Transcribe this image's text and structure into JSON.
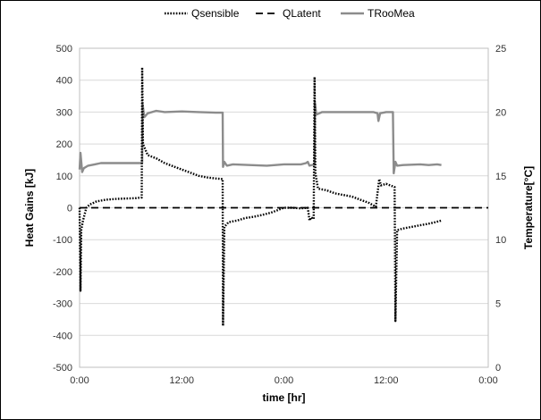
{
  "chart_data": {
    "type": "line",
    "xlabel": "time [hr]",
    "ylabel": "Heat Gains [kJ]",
    "y2label": "Temperature[°C]",
    "x_unit": "hours",
    "xlim": [
      0,
      48
    ],
    "ylim": [
      -500,
      500
    ],
    "y2lim": [
      0,
      25
    ],
    "x_ticks": [
      0,
      12,
      24,
      36,
      48
    ],
    "x_tick_labels": [
      "0:00",
      "12:00",
      "0:00",
      "12:00",
      "0:00"
    ],
    "y_ticks": [
      -500,
      -400,
      -300,
      -200,
      -100,
      0,
      100,
      200,
      300,
      400,
      500
    ],
    "y_tick_labels": [
      "-500",
      "-400",
      "-300",
      "-200",
      "-100",
      "0",
      "100",
      "200",
      "300",
      "400",
      "500"
    ],
    "y2_ticks": [
      0,
      5,
      10,
      15,
      20,
      25
    ],
    "y2_tick_labels": [
      "0",
      "5",
      "10",
      "15",
      "20",
      "25"
    ],
    "grid": "horizontal",
    "legend_position": "top",
    "series": [
      {
        "name": "Qsensible",
        "axis": "left",
        "style": "dotted",
        "color": "#000000",
        "points": [
          [
            0,
            0
          ],
          [
            0.1,
            -260
          ],
          [
            0.2,
            -70
          ],
          [
            0.4,
            -40
          ],
          [
            0.6,
            -20
          ],
          [
            0.8,
            0
          ],
          [
            1.2,
            10
          ],
          [
            2.0,
            20
          ],
          [
            3.0,
            25
          ],
          [
            4.5,
            28
          ],
          [
            6.5,
            30
          ],
          [
            7.3,
            32
          ],
          [
            7.35,
            440
          ],
          [
            7.45,
            200
          ],
          [
            7.6,
            190
          ],
          [
            8.0,
            165
          ],
          [
            9.0,
            155
          ],
          [
            10.0,
            140
          ],
          [
            11.0,
            130
          ],
          [
            12.0,
            120
          ],
          [
            13.0,
            110
          ],
          [
            14.0,
            100
          ],
          [
            15.0,
            95
          ],
          [
            16.0,
            92
          ],
          [
            16.8,
            90
          ],
          [
            16.85,
            -370
          ],
          [
            17.0,
            -60
          ],
          [
            17.5,
            -45
          ],
          [
            18.5,
            -40
          ],
          [
            19.5,
            -32
          ],
          [
            20.5,
            -28
          ],
          [
            21.5,
            -22
          ],
          [
            22.5,
            -15
          ],
          [
            23.0,
            -10
          ],
          [
            24.0,
            0
          ],
          [
            25.0,
            0
          ],
          [
            26.0,
            -2
          ],
          [
            26.8,
            0
          ],
          [
            27.0,
            -40
          ],
          [
            27.2,
            -30
          ],
          [
            27.5,
            -35
          ],
          [
            27.6,
            410
          ],
          [
            27.7,
            110
          ],
          [
            28.0,
            60
          ],
          [
            29.0,
            55
          ],
          [
            30.0,
            45
          ],
          [
            31.0,
            40
          ],
          [
            32.0,
            35
          ],
          [
            33.0,
            25
          ],
          [
            34.0,
            15
          ],
          [
            34.8,
            3
          ],
          [
            35.2,
            90
          ],
          [
            35.4,
            70
          ],
          [
            36.0,
            75
          ],
          [
            36.5,
            70
          ],
          [
            37.0,
            65
          ],
          [
            37.1,
            -355
          ],
          [
            37.3,
            -70
          ],
          [
            38.0,
            -65
          ],
          [
            39.0,
            -60
          ],
          [
            40.0,
            -55
          ],
          [
            41.0,
            -50
          ],
          [
            41.8,
            -45
          ],
          [
            42.5,
            -40
          ]
        ]
      },
      {
        "name": "QLatent",
        "axis": "left",
        "style": "dashed",
        "color": "#000000",
        "points": [
          [
            0,
            0
          ],
          [
            48,
            0
          ]
        ]
      },
      {
        "name": "TRooMea",
        "axis": "right",
        "style": "solid",
        "color": "#8c8c8c",
        "points": [
          [
            0,
            15.5
          ],
          [
            0.1,
            16.8
          ],
          [
            0.3,
            15.3
          ],
          [
            0.5,
            15.6
          ],
          [
            1.0,
            15.8
          ],
          [
            1.8,
            15.9
          ],
          [
            2.5,
            16.0
          ],
          [
            4.0,
            16.0
          ],
          [
            6.0,
            16.0
          ],
          [
            7.35,
            16.0
          ],
          [
            7.4,
            20.6
          ],
          [
            7.6,
            19.6
          ],
          [
            8.0,
            19.9
          ],
          [
            9.0,
            20.1
          ],
          [
            10.0,
            20.0
          ],
          [
            12.0,
            20.05
          ],
          [
            14.0,
            20.0
          ],
          [
            16.0,
            19.95
          ],
          [
            16.8,
            19.95
          ],
          [
            16.85,
            15.7
          ],
          [
            17.0,
            16.1
          ],
          [
            17.3,
            15.8
          ],
          [
            18.0,
            15.9
          ],
          [
            20.0,
            15.85
          ],
          [
            22.0,
            15.8
          ],
          [
            24.0,
            15.9
          ],
          [
            26.0,
            15.9
          ],
          [
            26.6,
            16.0
          ],
          [
            26.8,
            16.1
          ],
          [
            27.0,
            15.8
          ],
          [
            27.6,
            15.9
          ],
          [
            27.65,
            20.7
          ],
          [
            27.8,
            19.8
          ],
          [
            28.5,
            20.0
          ],
          [
            30.0,
            20.0
          ],
          [
            32.0,
            20.0
          ],
          [
            33.5,
            20.0
          ],
          [
            34.5,
            20.0
          ],
          [
            35.0,
            19.9
          ],
          [
            35.1,
            19.3
          ],
          [
            35.3,
            19.9
          ],
          [
            36.0,
            20.0
          ],
          [
            36.8,
            20.0
          ],
          [
            36.9,
            15.2
          ],
          [
            37.1,
            16.1
          ],
          [
            37.3,
            15.8
          ],
          [
            38.0,
            15.85
          ],
          [
            40.0,
            15.9
          ],
          [
            41.0,
            15.85
          ],
          [
            42.0,
            15.9
          ],
          [
            42.5,
            15.85
          ]
        ]
      }
    ]
  }
}
